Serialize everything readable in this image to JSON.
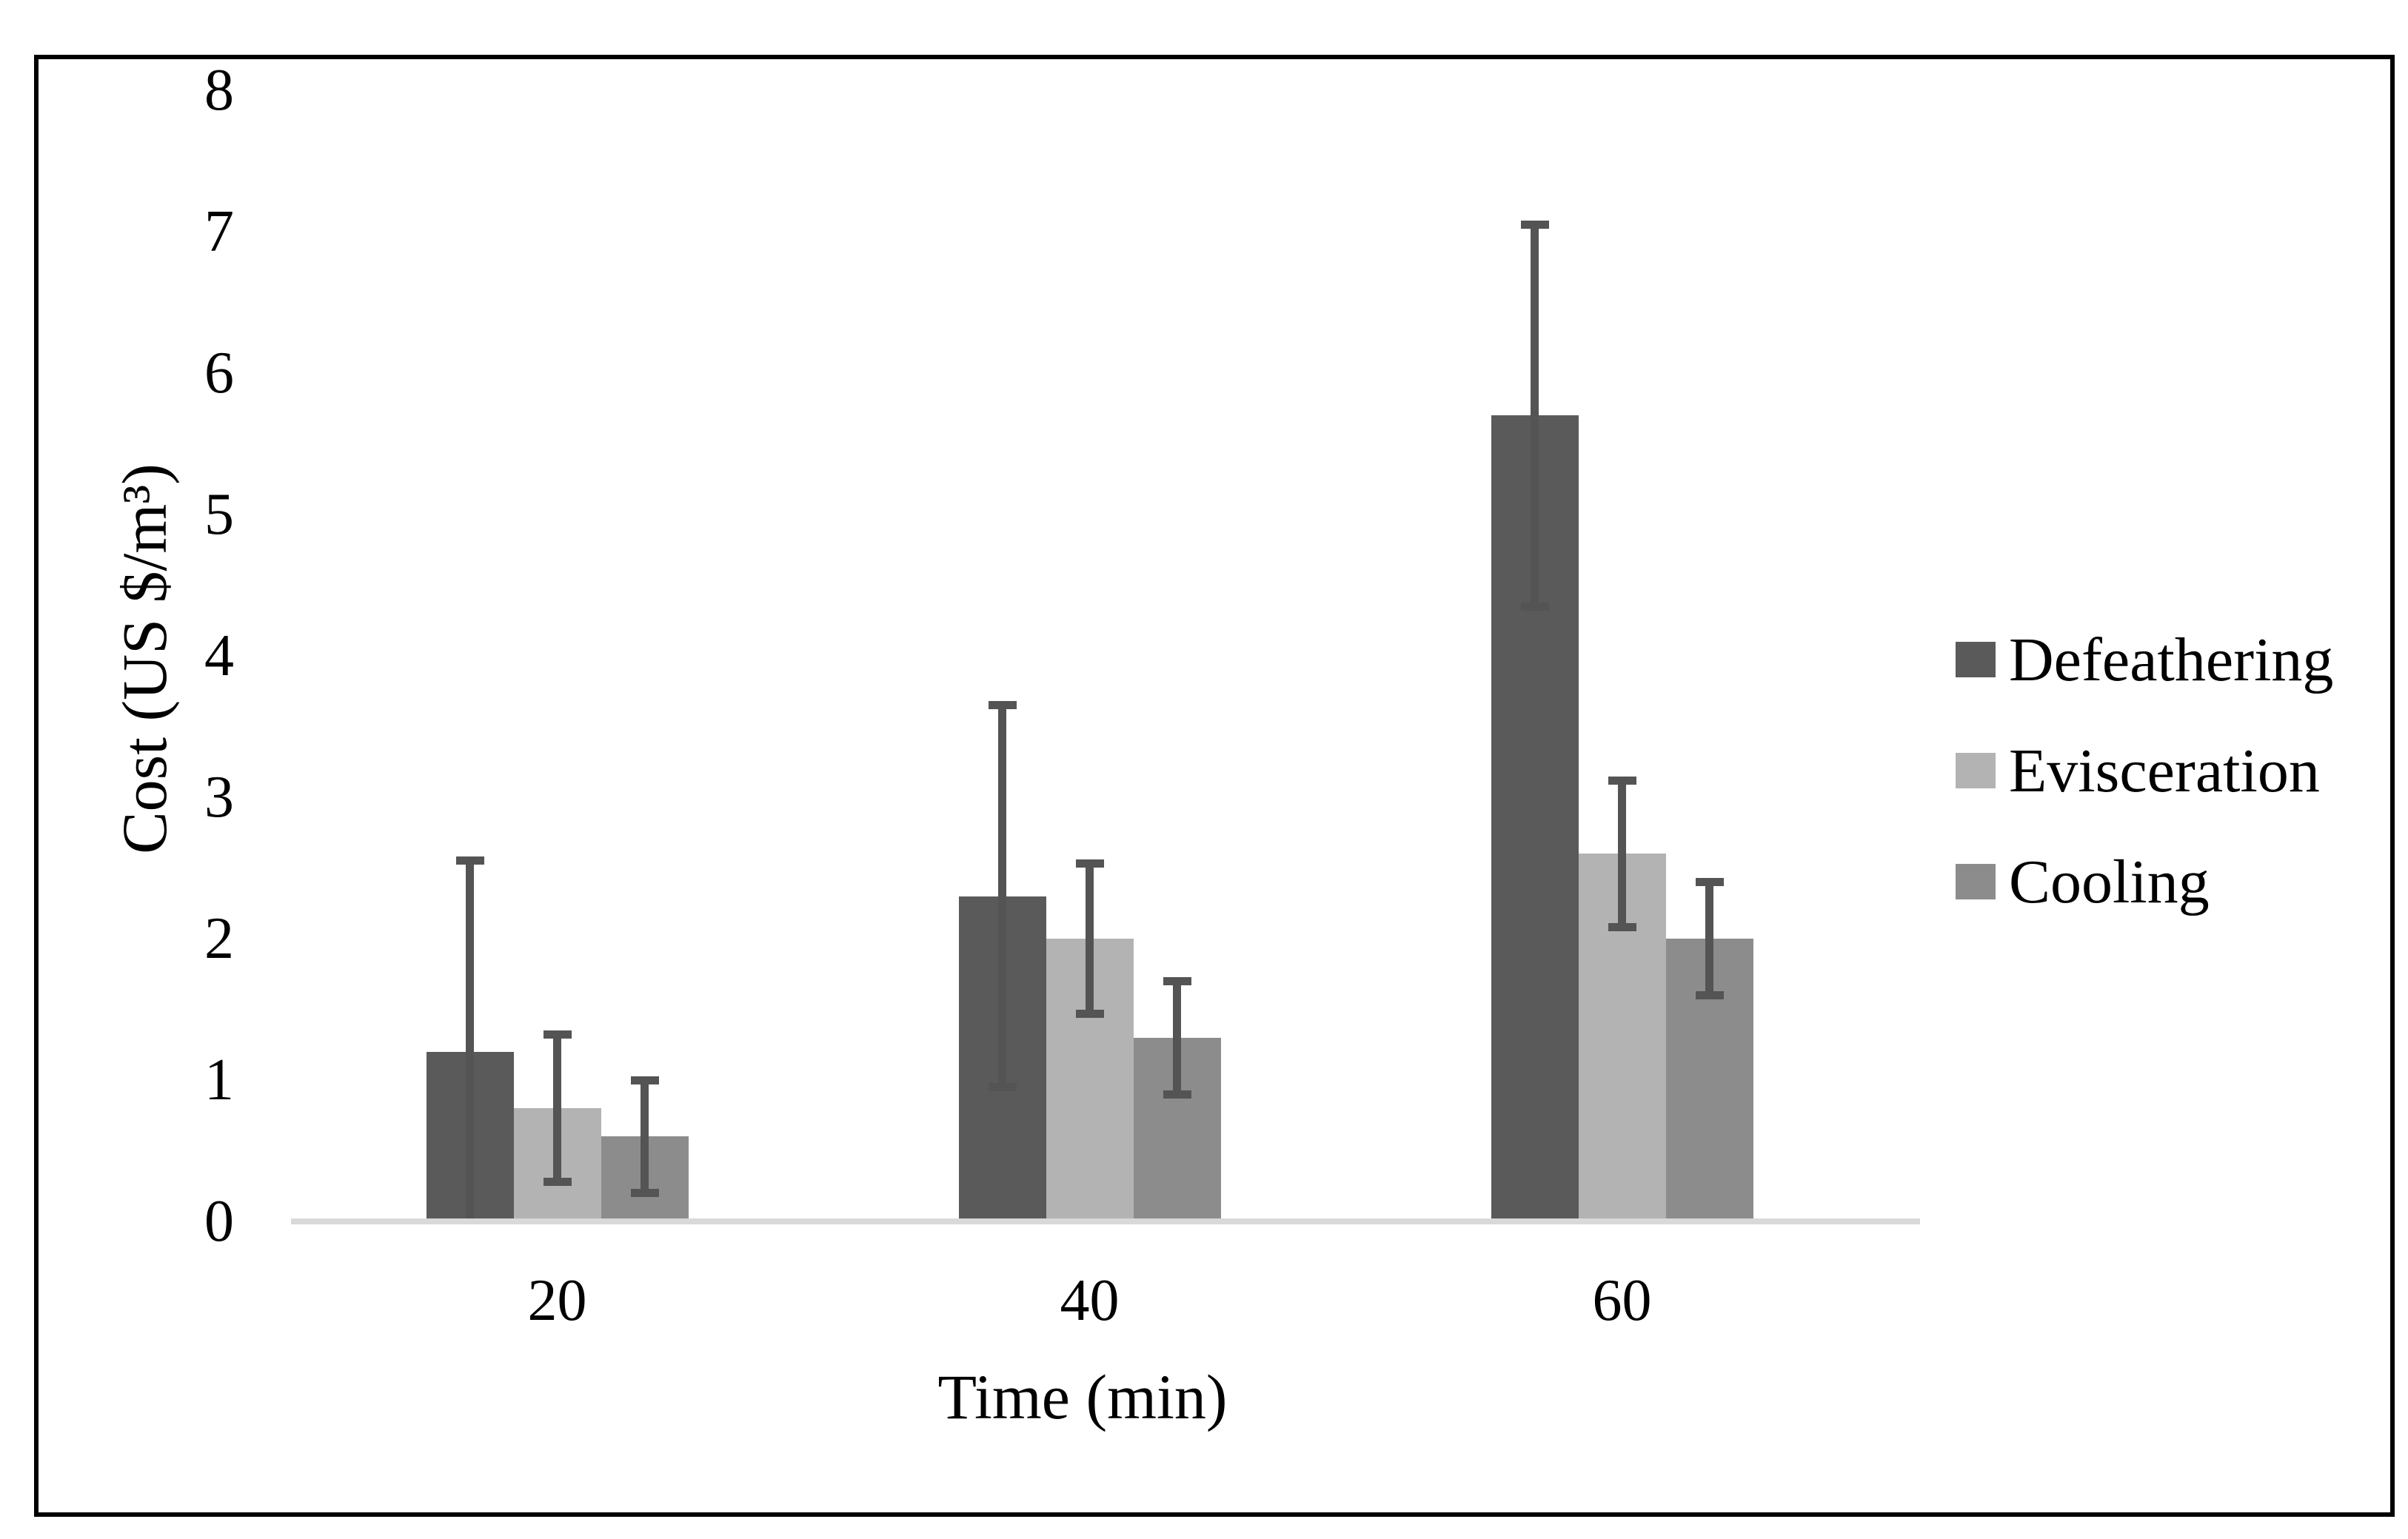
{
  "figure": {
    "background_color": "#ffffff",
    "border_color": "#000000"
  },
  "chart_data": {
    "type": "bar",
    "title": "",
    "xlabel": "Time (min)",
    "ylabel": "Cost (US $/m³)",
    "categories": [
      "20",
      "40",
      "60"
    ],
    "series": [
      {
        "name": "Defeathering",
        "color": "#5a5a5a",
        "values": [
          1.2,
          2.3,
          5.7
        ],
        "error_plus": [
          1.35,
          1.35,
          1.35
        ],
        "error_minus": [
          1.35,
          1.35,
          1.35
        ]
      },
      {
        "name": "Evisceration",
        "color": "#b3b3b3",
        "values": [
          0.8,
          2.0,
          2.6
        ],
        "error_plus": [
          0.52,
          0.53,
          0.52
        ],
        "error_minus": [
          0.52,
          0.53,
          0.52
        ]
      },
      {
        "name": "Cooling",
        "color": "#8c8c8c",
        "values": [
          0.6,
          1.3,
          2.0
        ],
        "error_plus": [
          0.4,
          0.4,
          0.4
        ],
        "error_minus": [
          0.4,
          0.4,
          0.4
        ]
      }
    ],
    "ylim": [
      0,
      8
    ],
    "yticks": [
      0,
      1,
      2,
      3,
      4,
      5,
      6,
      7,
      8
    ],
    "grid": false,
    "legend_position": "right",
    "error_bar_color": "#545454",
    "axis_line_color": "#d9d9d9"
  }
}
